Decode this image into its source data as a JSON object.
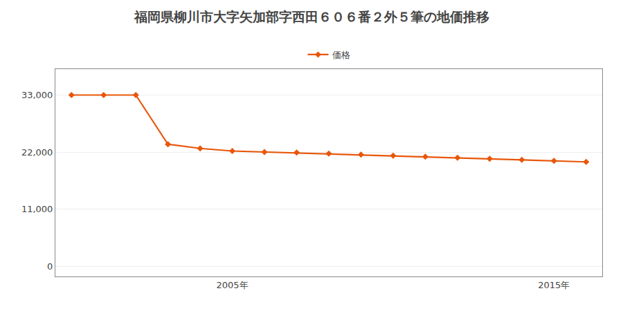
{
  "chart_data": {
    "type": "line",
    "title": "福岡県柳川市大字矢加部字西田６０６番２外５筆の地価推移",
    "x": [
      2000,
      2001,
      2002,
      2003,
      2004,
      2005,
      2006,
      2007,
      2008,
      2009,
      2010,
      2011,
      2012,
      2013,
      2014,
      2015,
      2016
    ],
    "series": [
      {
        "name": "価格",
        "color": "#e8560a",
        "marker": "diamond",
        "values": [
          33000,
          33000,
          33000,
          23500,
          22700,
          22200,
          22000,
          21900,
          21700,
          21500,
          21300,
          21100,
          20900,
          20700,
          20500,
          20300,
          20100
        ]
      }
    ],
    "xlim": [
      1999.5,
      2016.5
    ],
    "xticks": [
      {
        "value": 2005,
        "label": "2005年"
      },
      {
        "value": 2015,
        "label": "2015年"
      }
    ],
    "ylim": [
      -2000,
      38000
    ],
    "yticks": [
      0,
      {
        "value": 11000,
        "label": "11,000"
      },
      {
        "value": 22000,
        "label": "22,000"
      },
      {
        "value": 33000,
        "label": "33,000"
      }
    ],
    "grid": "y",
    "legend": "top"
  }
}
